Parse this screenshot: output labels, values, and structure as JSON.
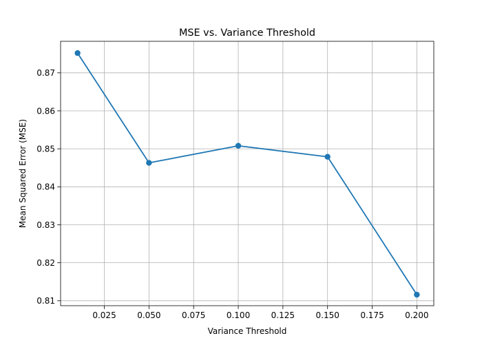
{
  "chart_data": {
    "type": "line",
    "title": "MSE vs. Variance Threshold",
    "xlabel": "Variance Threshold",
    "ylabel": "Mean Squared Error (MSE)",
    "xlim": [
      0.0005,
      0.2095
    ],
    "ylim": [
      0.8087,
      0.8783
    ],
    "xticks": [
      0.025,
      0.05,
      0.075,
      0.1,
      0.125,
      0.15,
      0.175,
      0.2
    ],
    "xtick_labels": [
      "0.025",
      "0.050",
      "0.075",
      "0.100",
      "0.125",
      "0.150",
      "0.175",
      "0.200"
    ],
    "yticks": [
      0.81,
      0.82,
      0.83,
      0.84,
      0.85,
      0.86,
      0.87
    ],
    "ytick_labels": [
      "0.81",
      "0.82",
      "0.83",
      "0.84",
      "0.85",
      "0.86",
      "0.87"
    ],
    "grid": true,
    "series": [
      {
        "x": [
          0.01,
          0.05,
          0.1,
          0.15,
          0.2
        ],
        "y": [
          0.8752,
          0.8463,
          0.8508,
          0.8479,
          0.8116
        ],
        "color": "#1f77b4",
        "marker": "circle"
      }
    ]
  }
}
